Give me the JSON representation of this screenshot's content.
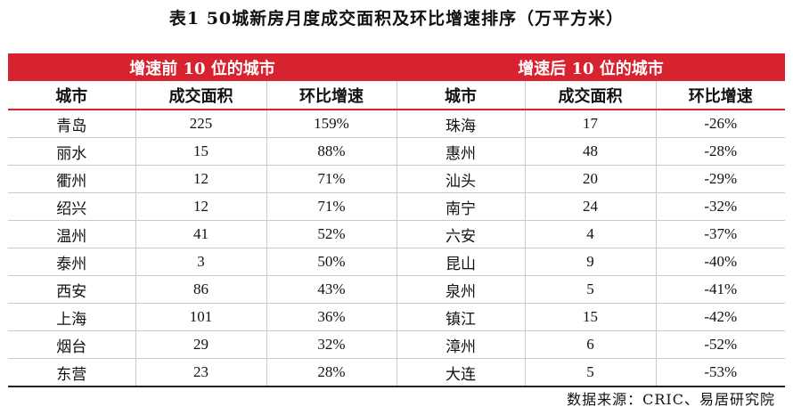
{
  "title": "表1  50城新房月度成交面积及环比增速排序（万平方米）",
  "groups": {
    "top": "增速前 10 位的城市",
    "bottom": "增速后 10 位的城市"
  },
  "columns": [
    "城市",
    "成交面积",
    "环比增速",
    "城市",
    "成交面积",
    "环比增速"
  ],
  "rows": [
    {
      "city_a": "青岛",
      "area_a": "225",
      "growth_a": "159%",
      "city_b": "珠海",
      "area_b": "17",
      "growth_b": "-26%"
    },
    {
      "city_a": "丽水",
      "area_a": "15",
      "growth_a": "88%",
      "city_b": "惠州",
      "area_b": "48",
      "growth_b": "-28%"
    },
    {
      "city_a": "衢州",
      "area_a": "12",
      "growth_a": "71%",
      "city_b": "汕头",
      "area_b": "20",
      "growth_b": "-29%"
    },
    {
      "city_a": "绍兴",
      "area_a": "12",
      "growth_a": "71%",
      "city_b": "南宁",
      "area_b": "24",
      "growth_b": "-32%"
    },
    {
      "city_a": "温州",
      "area_a": "41",
      "growth_a": "52%",
      "city_b": "六安",
      "area_b": "4",
      "growth_b": "-37%"
    },
    {
      "city_a": "泰州",
      "area_a": "3",
      "growth_a": "50%",
      "city_b": "昆山",
      "area_b": "9",
      "growth_b": "-40%"
    },
    {
      "city_a": "西安",
      "area_a": "86",
      "growth_a": "43%",
      "city_b": "泉州",
      "area_b": "5",
      "growth_b": "-41%"
    },
    {
      "city_a": "上海",
      "area_a": "101",
      "growth_a": "36%",
      "city_b": "镇江",
      "area_b": "15",
      "growth_b": "-42%"
    },
    {
      "city_a": "烟台",
      "area_a": "29",
      "growth_a": "32%",
      "city_b": "漳州",
      "area_b": "6",
      "growth_b": "-52%"
    },
    {
      "city_a": "东营",
      "area_a": "23",
      "growth_a": "28%",
      "city_b": "大连",
      "area_b": "5",
      "growth_b": "-53%"
    }
  ],
  "source": "数据来源：CRIC、易居研究院",
  "colors": {
    "accent": "#d7222f",
    "grid": "#c9c9c9"
  }
}
